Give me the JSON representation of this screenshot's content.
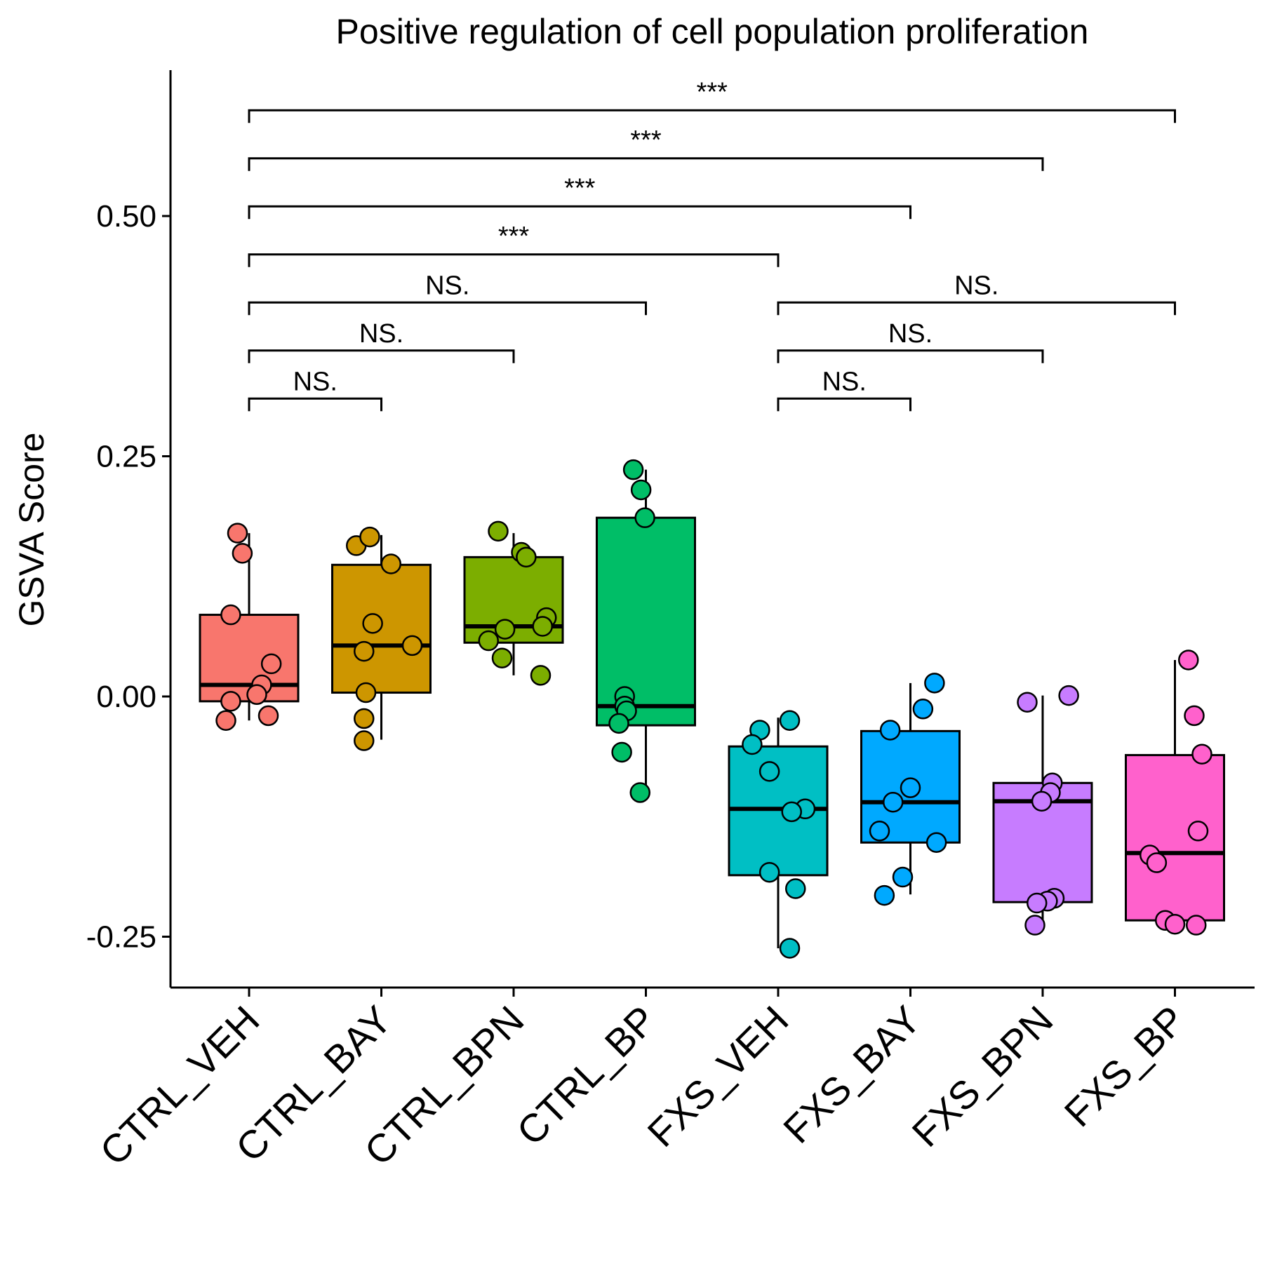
{
  "chart_data": {
    "type": "box",
    "title": "Positive regulation of cell population proliferation",
    "xlabel": "",
    "ylabel": "GSVA Score",
    "ylim": [
      -0.3,
      0.65
    ],
    "yticks": [
      -0.25,
      0.0,
      0.25,
      0.5
    ],
    "ytick_labels": [
      "-0.25",
      "0.00",
      "0.25",
      "0.50"
    ],
    "categories": [
      "CTRL_VEH",
      "CTRL_BAY",
      "CTRL_BPN",
      "CTRL_BP",
      "FXS_VEH",
      "FXS_BAY",
      "FXS_BPN",
      "FXS_BP"
    ],
    "colors": [
      "#F8766D",
      "#CD9600",
      "#7CAE00",
      "#00BE67",
      "#00BFC4",
      "#00A9FF",
      "#C77CFF",
      "#FF61CC"
    ],
    "boxes": [
      {
        "q1": -0.005,
        "median": 0.012,
        "q3": 0.085,
        "whisker_low": -0.025,
        "whisker_high": 0.17
      },
      {
        "q1": 0.004,
        "median": 0.053,
        "q3": 0.137,
        "whisker_low": -0.045,
        "whisker_high": 0.168
      },
      {
        "q1": 0.056,
        "median": 0.073,
        "q3": 0.145,
        "whisker_low": 0.022,
        "whisker_high": 0.17
      },
      {
        "q1": -0.03,
        "median": -0.01,
        "q3": 0.186,
        "whisker_low": -0.1,
        "whisker_high": 0.236
      },
      {
        "q1": -0.186,
        "median": -0.117,
        "q3": -0.052,
        "whisker_low": -0.262,
        "whisker_high": -0.022
      },
      {
        "q1": -0.152,
        "median": -0.11,
        "q3": -0.036,
        "whisker_low": -0.206,
        "whisker_high": 0.014
      },
      {
        "q1": -0.214,
        "median": -0.109,
        "q3": -0.09,
        "whisker_low": -0.238,
        "whisker_high": 0.001
      },
      {
        "q1": -0.233,
        "median": -0.163,
        "q3": -0.061,
        "whisker_low": -0.238,
        "whisker_high": 0.038
      }
    ],
    "points": [
      [
        [
          -0.012,
          0.17
        ],
        [
          -0.007,
          0.149
        ],
        [
          -0.019,
          0.085
        ],
        [
          0.023,
          0.034
        ],
        [
          0.013,
          0.012
        ],
        [
          0.008,
          0.002
        ],
        [
          -0.019,
          -0.005
        ],
        [
          0.02,
          -0.02
        ],
        [
          -0.024,
          -0.025
        ]
      ],
      [
        [
          -0.026,
          0.157
        ],
        [
          -0.012,
          0.166
        ],
        [
          0.01,
          0.138
        ],
        [
          -0.009,
          0.076
        ],
        [
          0.032,
          0.053
        ],
        [
          -0.018,
          0.047
        ],
        [
          -0.016,
          0.004
        ],
        [
          -0.018,
          -0.023
        ],
        [
          -0.018,
          -0.046
        ]
      ],
      [
        [
          -0.016,
          0.172
        ],
        [
          0.008,
          0.15
        ],
        [
          0.013,
          0.145
        ],
        [
          0.034,
          0.082
        ],
        [
          0.03,
          0.073
        ],
        [
          -0.009,
          0.07
        ],
        [
          -0.026,
          0.058
        ],
        [
          -0.012,
          0.04
        ],
        [
          0.028,
          0.022
        ]
      ],
      [
        [
          -0.013,
          0.236
        ],
        [
          -0.005,
          0.215
        ],
        [
          -0.001,
          0.186
        ],
        [
          -0.022,
          0.0
        ],
        [
          -0.022,
          -0.01
        ],
        [
          -0.02,
          -0.015
        ],
        [
          -0.028,
          -0.028
        ],
        [
          -0.025,
          -0.058
        ],
        [
          -0.006,
          -0.1
        ]
      ],
      [
        [
          0.012,
          -0.025
        ],
        [
          -0.019,
          -0.035
        ],
        [
          -0.027,
          -0.05
        ],
        [
          -0.009,
          -0.078
        ],
        [
          0.028,
          -0.117
        ],
        [
          0.014,
          -0.12
        ],
        [
          -0.009,
          -0.183
        ],
        [
          0.018,
          -0.2
        ],
        [
          0.012,
          -0.262
        ]
      ],
      [
        [
          0.025,
          0.014
        ],
        [
          0.013,
          -0.013
        ],
        [
          -0.021,
          -0.035
        ],
        [
          0.0,
          -0.095
        ],
        [
          -0.018,
          -0.11
        ],
        [
          -0.032,
          -0.14
        ],
        [
          0.027,
          -0.152
        ],
        [
          -0.008,
          -0.188
        ],
        [
          -0.027,
          -0.207
        ]
      ],
      [
        [
          -0.016,
          -0.006
        ],
        [
          0.027,
          0.001
        ],
        [
          0.01,
          -0.09
        ],
        [
          0.008,
          -0.1
        ],
        [
          -0.001,
          -0.109
        ],
        [
          0.012,
          -0.21
        ],
        [
          0.005,
          -0.213
        ],
        [
          -0.006,
          -0.215
        ],
        [
          -0.008,
          -0.238
        ]
      ],
      [
        [
          0.014,
          0.038
        ],
        [
          0.02,
          -0.02
        ],
        [
          0.028,
          -0.06
        ],
        [
          0.024,
          -0.14
        ],
        [
          -0.026,
          -0.165
        ],
        [
          -0.019,
          -0.173
        ],
        [
          -0.01,
          -0.233
        ],
        [
          0.0,
          -0.237
        ],
        [
          0.022,
          -0.238
        ]
      ]
    ],
    "comparisons": [
      {
        "from": 0,
        "to": 1,
        "y": 0.31,
        "label": "NS."
      },
      {
        "from": 0,
        "to": 2,
        "y": 0.36,
        "label": "NS."
      },
      {
        "from": 0,
        "to": 3,
        "y": 0.41,
        "label": "NS."
      },
      {
        "from": 0,
        "to": 4,
        "y": 0.46,
        "label": "***"
      },
      {
        "from": 0,
        "to": 5,
        "y": 0.51,
        "label": "***"
      },
      {
        "from": 0,
        "to": 6,
        "y": 0.56,
        "label": "***"
      },
      {
        "from": 0,
        "to": 7,
        "y": 0.61,
        "label": "***"
      },
      {
        "from": 4,
        "to": 5,
        "y": 0.31,
        "label": "NS."
      },
      {
        "from": 4,
        "to": 6,
        "y": 0.36,
        "label": "NS."
      },
      {
        "from": 4,
        "to": 7,
        "y": 0.41,
        "label": "NS."
      }
    ],
    "grid": false,
    "legend": "none"
  }
}
